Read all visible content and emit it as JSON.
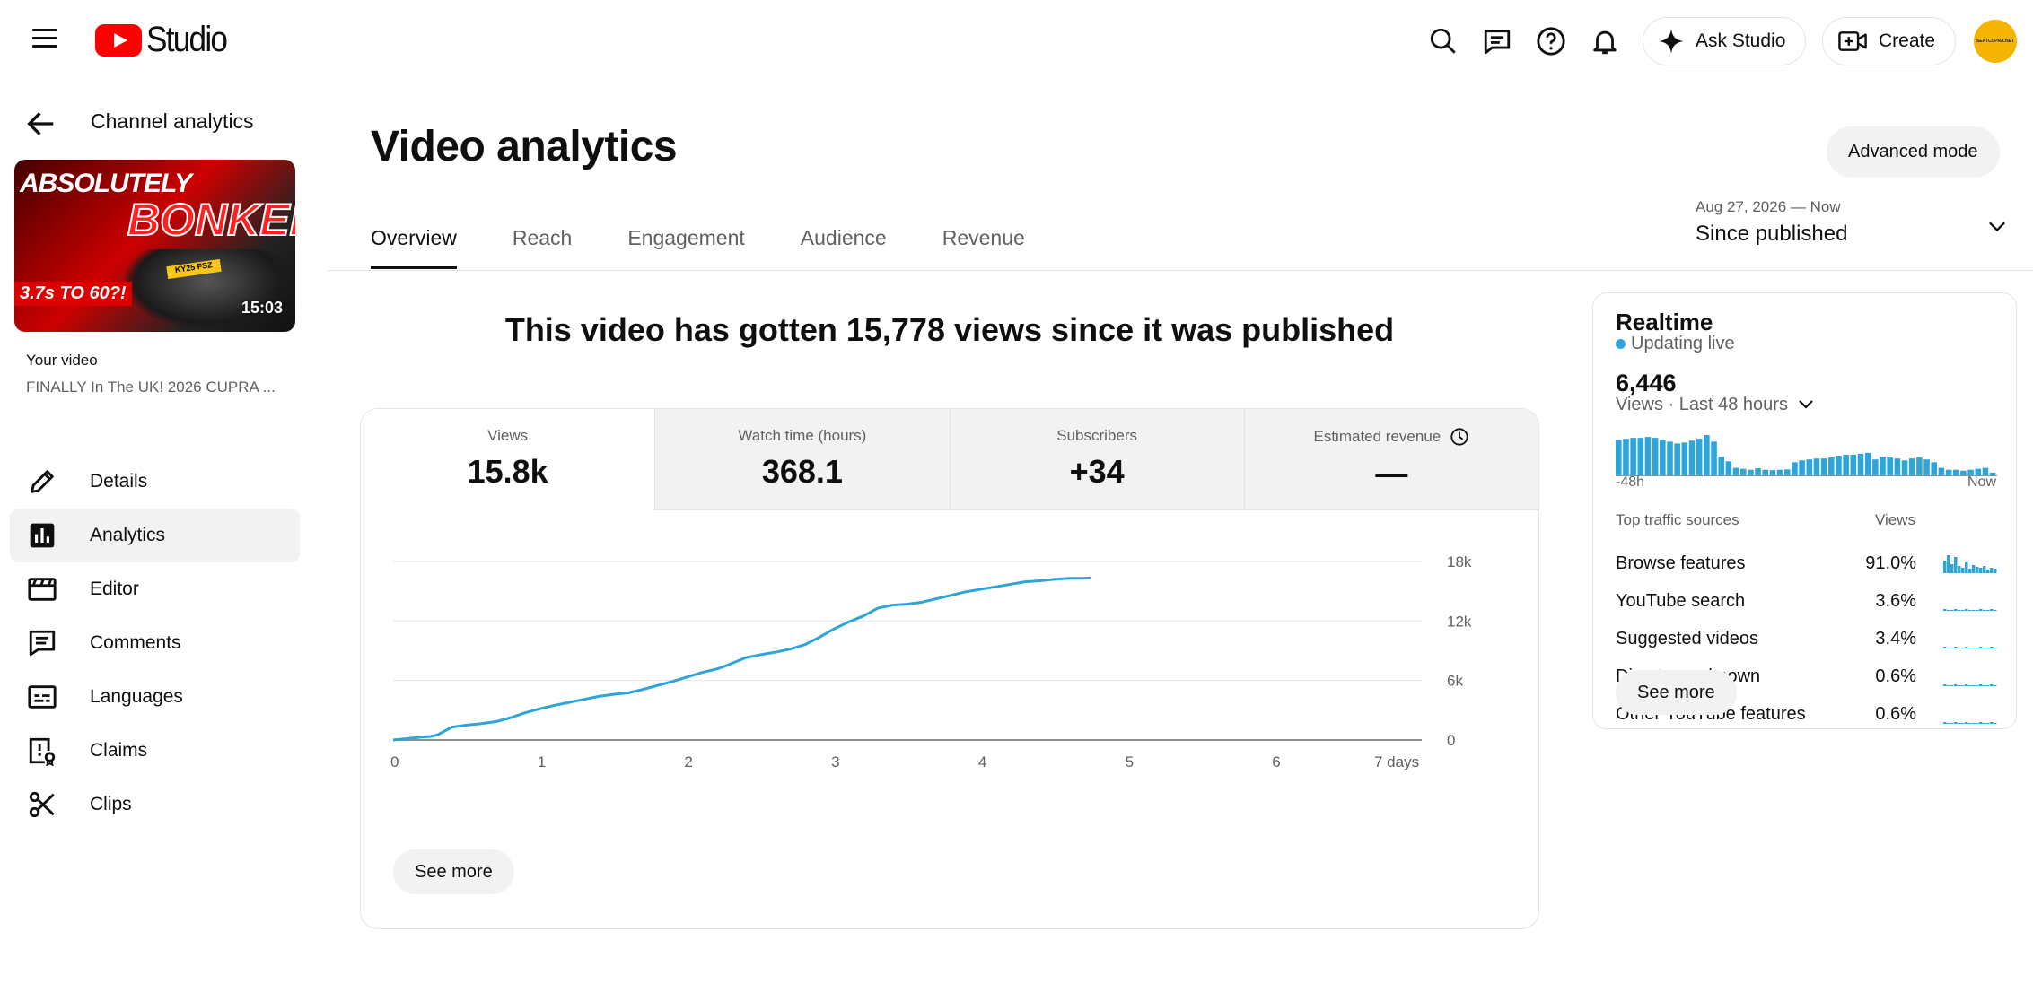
{
  "header": {
    "logo_text": "Studio",
    "ask_studio": "Ask Studio",
    "create": "Create",
    "avatar_text": "SEATCUPRA.NET"
  },
  "sidebar": {
    "title": "Channel analytics",
    "thumbnail": {
      "line1": "ABSOLUTELY",
      "line2": "BONKERS",
      "line3": "3.7s TO 60?!",
      "plate": "KY25 FSZ",
      "duration": "15:03"
    },
    "your_video_label": "Your video",
    "video_title": "FINALLY In The UK! 2026 CUPRA ...",
    "items": [
      {
        "label": "Details",
        "icon": "pencil-icon"
      },
      {
        "label": "Analytics",
        "icon": "analytics-icon",
        "active": true
      },
      {
        "label": "Editor",
        "icon": "clapperboard-icon"
      },
      {
        "label": "Comments",
        "icon": "comment-icon"
      },
      {
        "label": "Languages",
        "icon": "subtitles-icon"
      },
      {
        "label": "Claims",
        "icon": "copyright-claim-icon"
      },
      {
        "label": "Clips",
        "icon": "scissors-icon"
      }
    ]
  },
  "main": {
    "title": "Video analytics",
    "advanced_mode": "Advanced mode",
    "tabs": [
      "Overview",
      "Reach",
      "Engagement",
      "Audience",
      "Revenue"
    ],
    "active_tab": "Overview",
    "date_range": {
      "range": "Aug 27, 2026 — Now",
      "label": "Since published"
    },
    "headline": "This video has gotten 15,778 views since it was published",
    "metrics": [
      {
        "label": "Views",
        "value": "15.8k"
      },
      {
        "label": "Watch time (hours)",
        "value": "368.1"
      },
      {
        "label": "Subscribers",
        "value": "+34"
      },
      {
        "label": "Estimated revenue",
        "value": "—"
      }
    ],
    "see_more": "See more"
  },
  "chart_data": {
    "type": "line",
    "series": [
      {
        "name": "Views",
        "x": [
          0,
          0.1,
          0.2,
          0.25,
          0.3,
          0.35,
          0.4,
          0.5,
          0.6,
          0.7,
          0.8,
          0.9,
          1.0,
          1.1,
          1.2,
          1.3,
          1.4,
          1.5,
          1.6,
          1.7,
          1.8,
          1.9,
          2.0,
          2.1,
          2.2,
          2.25,
          2.3,
          2.4,
          2.5,
          2.6,
          2.7,
          2.8,
          2.9,
          3.0,
          3.1,
          3.2,
          3.3,
          3.4,
          3.5,
          3.6,
          3.7,
          3.8,
          3.9,
          4.0,
          4.1,
          4.2,
          4.3,
          4.4,
          4.5,
          4.6,
          4.7,
          4.75
        ],
        "y": [
          0,
          150,
          300,
          350,
          500,
          900,
          1300,
          1500,
          1650,
          1850,
          2250,
          2750,
          3150,
          3500,
          3800,
          4100,
          4400,
          4600,
          4750,
          5100,
          5500,
          5900,
          6350,
          6800,
          7150,
          7400,
          7700,
          8300,
          8600,
          8850,
          9150,
          9600,
          10350,
          11200,
          11900,
          12500,
          13300,
          13600,
          13700,
          13900,
          14250,
          14600,
          14950,
          15200,
          15450,
          15700,
          15950,
          16050,
          16200,
          16300,
          16300,
          16350
        ]
      }
    ],
    "xlabel": "",
    "ylabel": "",
    "x_ticks": [
      "0",
      "1",
      "2",
      "3",
      "4",
      "5",
      "6",
      "7 days"
    ],
    "y_ticks": [
      "0",
      "6k",
      "12k",
      "18k"
    ],
    "xlim": [
      0,
      7
    ],
    "ylim": [
      0,
      18000
    ],
    "grid": true,
    "color": "#2ea5d8"
  },
  "realtime": {
    "title": "Realtime",
    "status": "Updating live",
    "count": "6,446",
    "period": "Views · Last 48 hours",
    "axis_start": "-48h",
    "axis_end": "Now",
    "hourly_views": [
      190,
      195,
      200,
      200,
      205,
      200,
      190,
      180,
      170,
      175,
      185,
      195,
      215,
      180,
      100,
      75,
      40,
      35,
      30,
      38,
      30,
      28,
      30,
      32,
      70,
      80,
      85,
      90,
      90,
      95,
      105,
      110,
      110,
      115,
      120,
      85,
      100,
      95,
      90,
      80,
      90,
      95,
      85,
      70,
      40,
      30,
      30,
      25,
      30,
      35,
      40,
      15
    ],
    "sources_header": "Top traffic sources",
    "views_header": "Views",
    "sources": [
      {
        "name": "Browse features",
        "pct": "91.0%"
      },
      {
        "name": "YouTube search",
        "pct": "3.6%"
      },
      {
        "name": "Suggested videos",
        "pct": "3.4%"
      },
      {
        "name": "Direct or unknown",
        "pct": "0.6%"
      },
      {
        "name": "Other YouTube features",
        "pct": "0.6%"
      }
    ],
    "see_more": "See more"
  }
}
